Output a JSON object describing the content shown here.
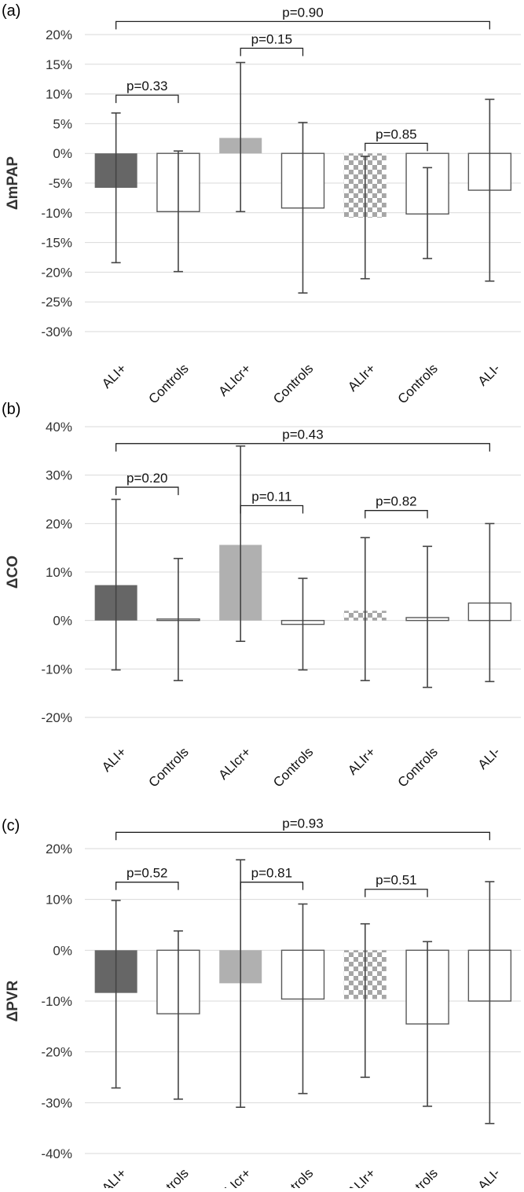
{
  "colors": {
    "dark": "#666666",
    "light": "#b0b0b0",
    "white": "#ffffff",
    "check_a": "#a6a6a6",
    "check_b": "#ffffff",
    "edge": "#595959",
    "error": "#404040"
  },
  "chart_data": [
    {
      "type": "bar",
      "panel": "(a)",
      "ylabel": "ΔmPAP",
      "categories": [
        "ALI+",
        "Controls",
        "ALIcr+",
        "Controls",
        "ALIr+",
        "Controls",
        "ALI-"
      ],
      "fills": [
        "dark",
        "white",
        "light",
        "white",
        "checker",
        "white",
        "white"
      ],
      "values": [
        -5.8,
        -9.8,
        2.6,
        -9.2,
        -10.8,
        -10.2,
        -6.2
      ],
      "err_high": [
        6.8,
        0.4,
        15.3,
        5.2,
        -0.5,
        -2.4,
        9.1
      ],
      "err_low": [
        -18.4,
        -19.9,
        -9.8,
        -23.5,
        -21.1,
        -17.7,
        -21.5
      ],
      "ylim": [
        -30,
        20
      ],
      "yticks": [
        20,
        15,
        10,
        5,
        0,
        -5,
        -10,
        -15,
        -20,
        -25,
        -30
      ],
      "ytick_labels": [
        "20%",
        "15%",
        "10%",
        "5%",
        "0%",
        "-5%",
        "-10%",
        "-15%",
        "-20%",
        "-25%",
        "-30%"
      ],
      "grid": true,
      "comparisons": [
        {
          "from": 0,
          "to": 6,
          "label": "p=0.90",
          "level": 22.2
        },
        {
          "from": 2,
          "to": 3,
          "label": "p=0.15",
          "level": 17.7
        },
        {
          "from": 0,
          "to": 1,
          "label": "p=0.33",
          "level": 9.8
        },
        {
          "from": 4,
          "to": 5,
          "label": "p=0.85",
          "level": 1.7
        }
      ]
    },
    {
      "type": "bar",
      "panel": "(b)",
      "ylabel": "ΔCO",
      "categories": [
        "ALI+",
        "Controls",
        "ALIcr+",
        "Controls",
        "ALIr+",
        "Controls",
        "ALI-"
      ],
      "fills": [
        "dark",
        "white",
        "light",
        "white",
        "checker",
        "white",
        "white"
      ],
      "values": [
        7.3,
        0.3,
        15.6,
        -0.8,
        2.0,
        0.6,
        3.6
      ],
      "err_high": [
        25.0,
        12.8,
        36.0,
        8.7,
        17.1,
        15.3,
        20.0
      ],
      "err_low": [
        -10.2,
        -12.4,
        -4.3,
        -10.2,
        -12.4,
        -13.8,
        -12.6
      ],
      "ylim": [
        -20,
        40
      ],
      "yticks": [
        40,
        30,
        20,
        10,
        0,
        -10,
        -20
      ],
      "ytick_labels": [
        "40%",
        "30%",
        "20%",
        "10%",
        "0%",
        "-10%",
        "-20%"
      ],
      "grid": true,
      "comparisons": [
        {
          "from": 0,
          "to": 6,
          "label": "p=0.43",
          "level": 36.5
        },
        {
          "from": 0,
          "to": 1,
          "label": "p=0.20",
          "level": 27.5
        },
        {
          "from": 2,
          "to": 3,
          "label": "p=0.11",
          "level": 23.7
        },
        {
          "from": 4,
          "to": 5,
          "label": "p=0.82",
          "level": 22.7
        }
      ]
    },
    {
      "type": "bar",
      "panel": "(c)",
      "ylabel": "ΔPVR",
      "categories": [
        "ALI+",
        "Controls",
        "ALIcr+",
        "Controls",
        "ALIr+",
        "Controls",
        "ALI-"
      ],
      "fills": [
        "dark",
        "white",
        "light",
        "white",
        "checker",
        "white",
        "white"
      ],
      "values": [
        -8.4,
        -12.5,
        -6.5,
        -9.6,
        -9.6,
        -14.5,
        -10.0
      ],
      "err_high": [
        9.8,
        3.8,
        17.8,
        9.1,
        5.2,
        1.7,
        13.5
      ],
      "err_low": [
        -27.1,
        -29.3,
        -30.9,
        -28.2,
        -25.0,
        -30.7,
        -34.1
      ],
      "ylim": [
        -40,
        20
      ],
      "yticks": [
        20,
        10,
        0,
        -10,
        -20,
        -30,
        -40
      ],
      "ytick_labels": [
        "20%",
        "10%",
        "0%",
        "-10%",
        "-20%",
        "-30%",
        "-40%"
      ],
      "grid": true,
      "comparisons": [
        {
          "from": 0,
          "to": 6,
          "label": "p=0.93",
          "level": 23.2
        },
        {
          "from": 0,
          "to": 1,
          "label": "p=0.52",
          "level": 13.4
        },
        {
          "from": 2,
          "to": 3,
          "label": "p=0.81",
          "level": 13.4
        },
        {
          "from": 4,
          "to": 5,
          "label": "p=0.51",
          "level": 12.0
        }
      ]
    }
  ]
}
